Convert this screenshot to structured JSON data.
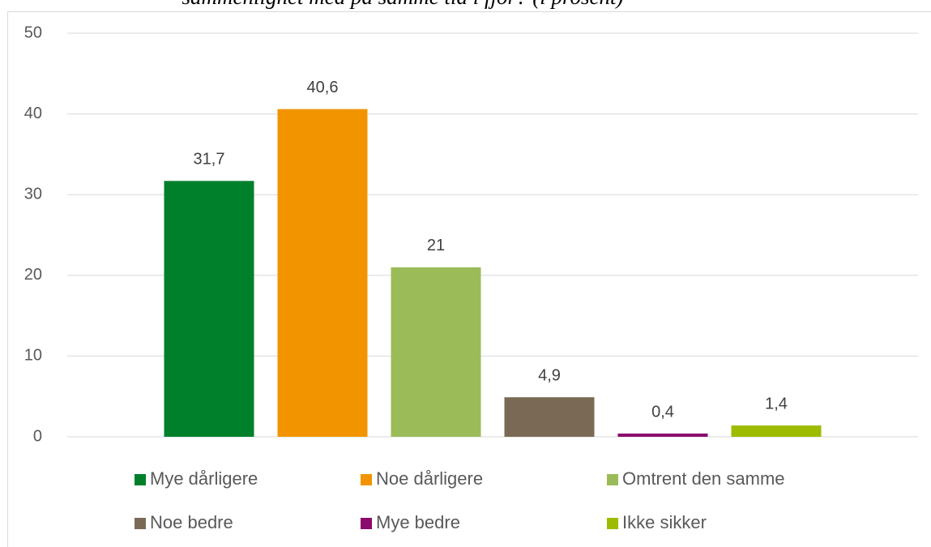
{
  "chart_data": {
    "type": "bar",
    "title": "sammenlignet med på samme tid i fjor? (i prosent)",
    "categories": [
      null
    ],
    "series": [
      {
        "name": "Mye dårligere",
        "color": "#00802b",
        "values": [
          31.7
        ],
        "value_labels": [
          "31,7"
        ]
      },
      {
        "name": "Noe dårligere",
        "color": "#f29400",
        "values": [
          40.6
        ],
        "value_labels": [
          "40,6"
        ]
      },
      {
        "name": "Omtrent den samme",
        "color": "#9bbb59",
        "values": [
          21
        ],
        "value_labels": [
          "21"
        ]
      },
      {
        "name": "Noe bedre",
        "color": "#7a6a55",
        "values": [
          4.9
        ],
        "value_labels": [
          "4,9"
        ]
      },
      {
        "name": "Mye bedre",
        "color": "#8b0a6e",
        "values": [
          0.4
        ],
        "value_labels": [
          "0,4"
        ]
      },
      {
        "name": "Ikke sikker",
        "color": "#9dbb00",
        "values": [
          1.4
        ],
        "value_labels": [
          "1,4"
        ]
      }
    ],
    "ylim": [
      0,
      50
    ],
    "yticks": [
      0,
      10,
      20,
      30,
      40,
      50
    ],
    "grid": true,
    "legend": "bottom"
  }
}
